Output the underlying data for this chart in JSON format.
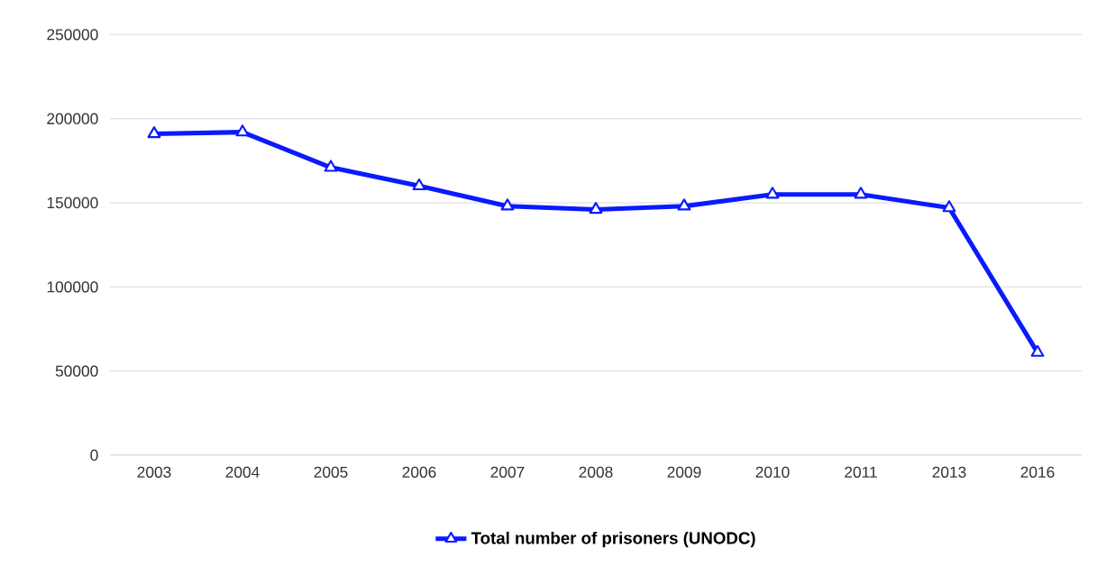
{
  "chart_data": {
    "type": "line",
    "categories": [
      "2003",
      "2004",
      "2005",
      "2006",
      "2007",
      "2008",
      "2009",
      "2010",
      "2011",
      "2013",
      "2016"
    ],
    "series": [
      {
        "name": "Total number of prisoners (UNODC)",
        "color": "#0a1aff",
        "values": [
          191000,
          192000,
          171000,
          160000,
          148000,
          146000,
          148000,
          155000,
          155000,
          147000,
          61000
        ]
      }
    ],
    "ylim": [
      0,
      250000
    ],
    "yticks": [
      0,
      50000,
      100000,
      150000,
      200000,
      250000
    ],
    "grid": "y",
    "legend": "bottom",
    "marker": "triangle",
    "line_style": "solid"
  }
}
